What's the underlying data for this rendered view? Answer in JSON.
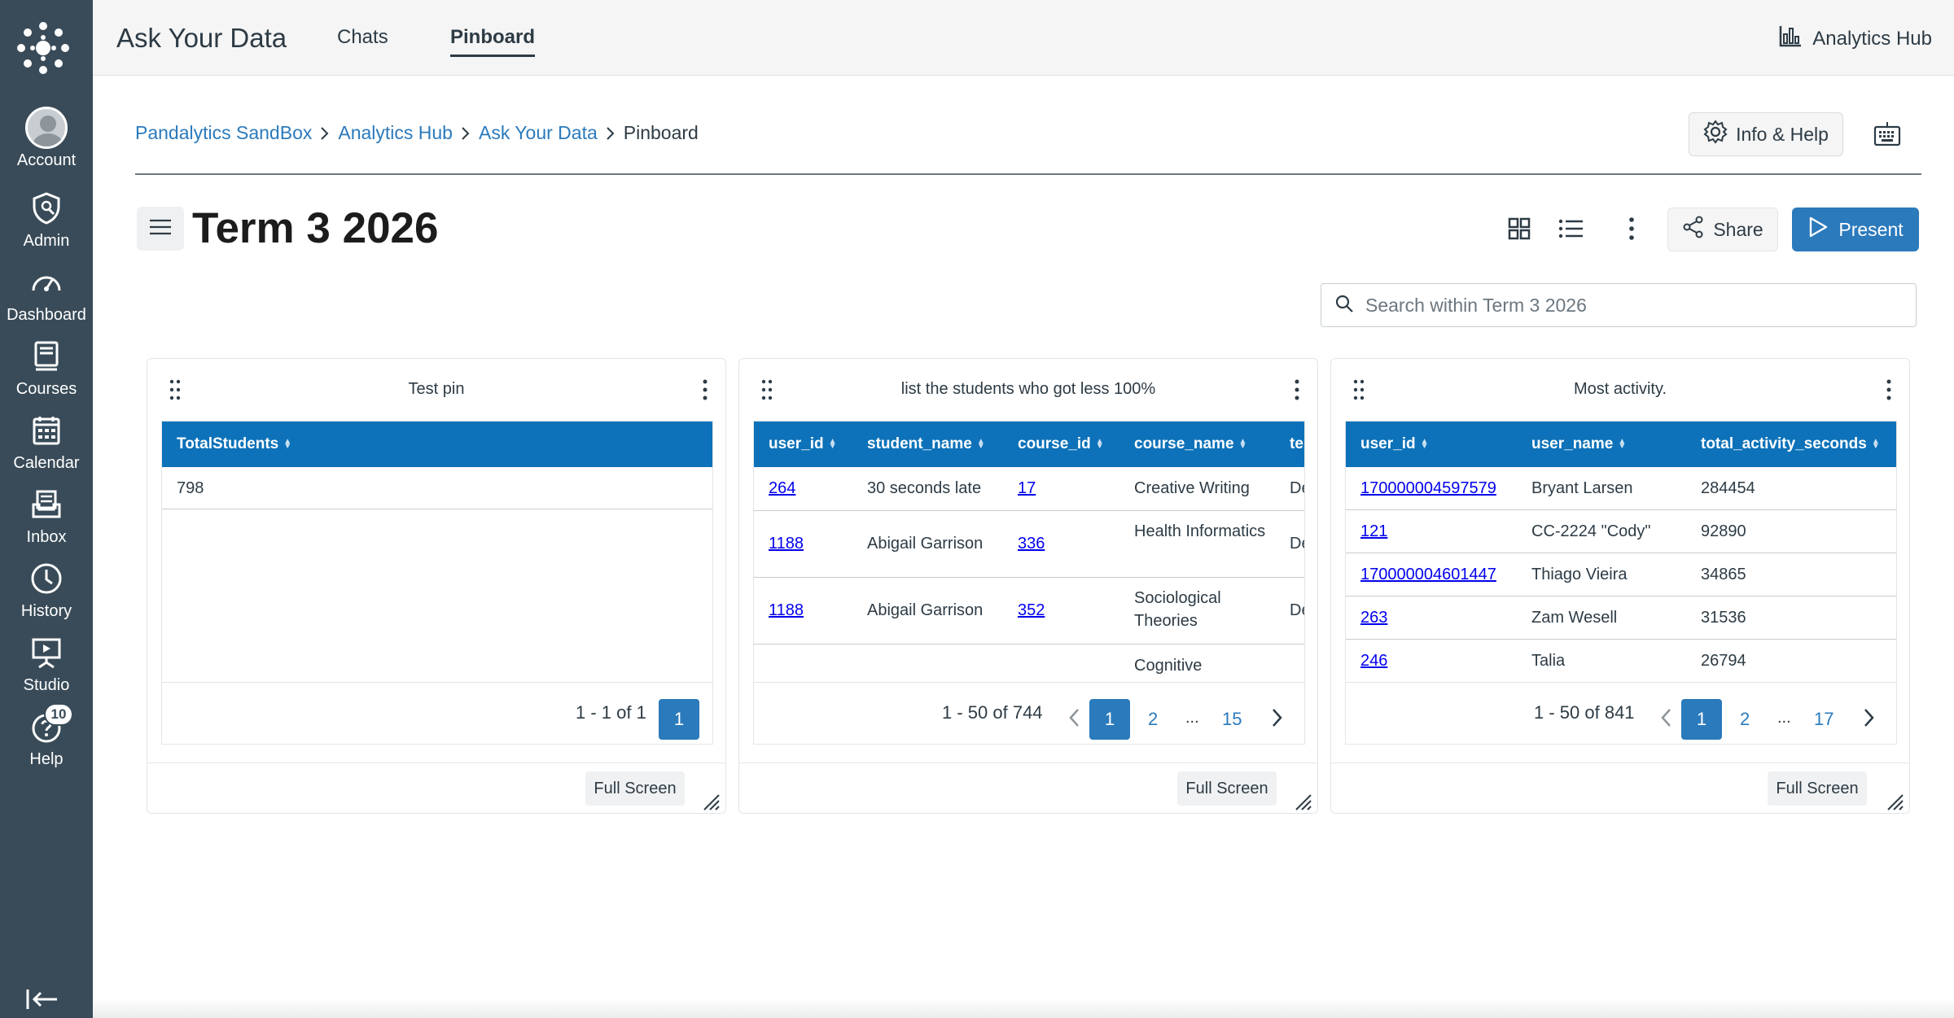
{
  "global_nav": {
    "items": [
      {
        "label": "Account",
        "icon": "account-avatar"
      },
      {
        "label": "Admin",
        "icon": "shield-icon"
      },
      {
        "label": "Dashboard",
        "icon": "dashboard-icon"
      },
      {
        "label": "Courses",
        "icon": "courses-icon"
      },
      {
        "label": "Calendar",
        "icon": "calendar-icon"
      },
      {
        "label": "Inbox",
        "icon": "inbox-icon"
      },
      {
        "label": "History",
        "icon": "clock-icon"
      },
      {
        "label": "Studio",
        "icon": "studio-icon"
      },
      {
        "label": "Help",
        "icon": "help-icon",
        "badge": "10"
      }
    ]
  },
  "topbar": {
    "app_title": "Ask Your Data",
    "tabs": [
      {
        "label": "Chats",
        "active": false
      },
      {
        "label": "Pinboard",
        "active": true
      }
    ],
    "hub_link": "Analytics Hub"
  },
  "breadcrumb": [
    "Pandalytics SandBox",
    "Analytics Hub",
    "Ask Your Data",
    "Pinboard"
  ],
  "info_help_label": "Info & Help",
  "pinboard": {
    "title": "Term 3 2026",
    "share_label": "Share",
    "present_label": "Present",
    "search_placeholder": "Search within Term 3 2026"
  },
  "colors": {
    "nav_bg": "#394b58",
    "accent": "#2b7abc",
    "table_header": "#0d72b9"
  },
  "cards": [
    {
      "title": "Test pin",
      "columns": [
        "TotalStudents"
      ],
      "rows": [
        [
          "798"
        ]
      ],
      "pager": {
        "range": "1 - 1 of 1",
        "current": "1"
      },
      "fullscreen_label": "Full Screen"
    },
    {
      "title": "list the students who got less 100%",
      "columns": [
        "user_id",
        "student_name",
        "course_id",
        "course_name",
        "te"
      ],
      "rows": [
        [
          "264",
          "30 seconds late",
          "17",
          "Creative Writing",
          "De"
        ],
        [
          "1188",
          "Abigail Garrison",
          "336",
          "Health Informatics",
          "De"
        ],
        [
          "1188",
          "Abigail Garrison",
          "352",
          "Sociological Theories",
          "De"
        ],
        [
          "",
          "",
          "",
          "Cognitive",
          ""
        ]
      ],
      "pager": {
        "range": "1 - 50 of 744",
        "current": "1",
        "next": "2",
        "ellipsis": "...",
        "last": "15"
      },
      "fullscreen_label": "Full Screen"
    },
    {
      "title": "Most activity.",
      "columns": [
        "user_id",
        "user_name",
        "total_activity_seconds"
      ],
      "rows": [
        [
          "170000004597579",
          "Bryant Larsen",
          "284454"
        ],
        [
          "121",
          "CC-2224 \"Cody\"",
          "92890"
        ],
        [
          "170000004601447",
          "Thiago Vieira",
          "34865"
        ],
        [
          "263",
          "Zam Wesell",
          "31536"
        ],
        [
          "246",
          "Talia",
          "26794"
        ]
      ],
      "pager": {
        "range": "1 - 50 of 841",
        "current": "1",
        "next": "2",
        "ellipsis": "...",
        "last": "17"
      },
      "fullscreen_label": "Full Screen"
    }
  ]
}
